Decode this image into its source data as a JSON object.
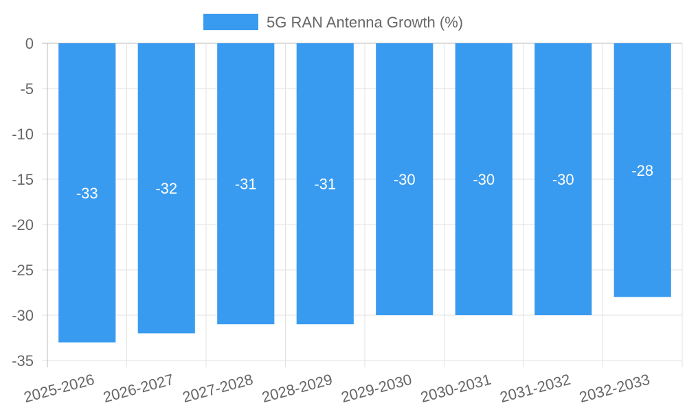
{
  "chart_data": {
    "type": "bar",
    "categories": [
      "2025-2026",
      "2026-2027",
      "2027-2028",
      "2028-2029",
      "2029-2030",
      "2030-2031",
      "2031-2032",
      "2032-2033"
    ],
    "series": [
      {
        "name": "5G RAN Antenna Growth (%)",
        "values": [
          -33,
          -32,
          -31,
          -31,
          -30,
          -30,
          -30,
          -28
        ],
        "color": "#399BF0"
      }
    ],
    "ylim": [
      -35,
      0
    ],
    "yticks": [
      0,
      -5,
      -10,
      -15,
      -20,
      -25,
      -30,
      -35
    ],
    "grid": true,
    "legend": "top-center",
    "data_labels": true
  }
}
